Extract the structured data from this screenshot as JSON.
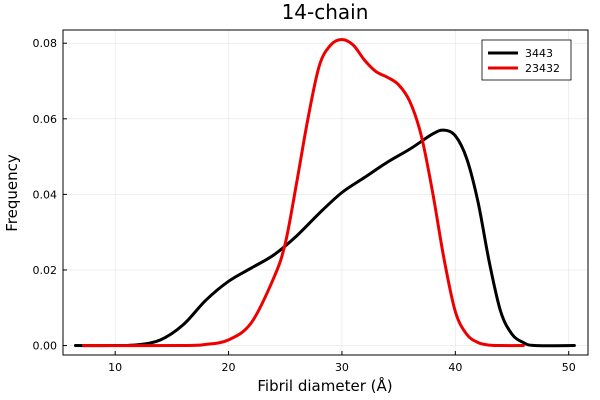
{
  "chart_data": {
    "type": "line",
    "title": "14-chain",
    "xlabel": "Fibril diameter (Å)",
    "ylabel": "Frequency",
    "xlim": [
      5.4,
      51.7
    ],
    "ylim": [
      -0.0025,
      0.0835
    ],
    "xticks": [
      10,
      20,
      30,
      40,
      50
    ],
    "xtick_labels": [
      "10",
      "20",
      "30",
      "40",
      "50"
    ],
    "yticks": [
      0.0,
      0.02,
      0.04,
      0.06,
      0.08
    ],
    "ytick_labels": [
      "0.00",
      "0.02",
      "0.04",
      "0.06",
      "0.08"
    ],
    "grid": true,
    "legend_position": "top-right",
    "series": [
      {
        "name": "3443",
        "color": "#000000",
        "points": [
          [
            6.5,
            0.0
          ],
          [
            10,
            0.0
          ],
          [
            12,
            0.0002
          ],
          [
            14,
            0.0015
          ],
          [
            16,
            0.0055
          ],
          [
            18,
            0.012
          ],
          [
            20,
            0.017
          ],
          [
            22,
            0.0205
          ],
          [
            24,
            0.024
          ],
          [
            26,
            0.029
          ],
          [
            28,
            0.035
          ],
          [
            30,
            0.0405
          ],
          [
            32,
            0.0445
          ],
          [
            34,
            0.0485
          ],
          [
            36,
            0.052
          ],
          [
            38,
            0.056
          ],
          [
            39,
            0.057
          ],
          [
            40,
            0.0555
          ],
          [
            41,
            0.0495
          ],
          [
            42,
            0.038
          ],
          [
            43,
            0.022
          ],
          [
            44,
            0.009
          ],
          [
            45,
            0.003
          ],
          [
            46,
            0.0008
          ],
          [
            47,
            0.0
          ],
          [
            50.5,
            0.0
          ]
        ]
      },
      {
        "name": "23432",
        "color": "#ee0000",
        "points": [
          [
            7.2,
            0.0
          ],
          [
            16,
            0.0
          ],
          [
            18,
            0.0003
          ],
          [
            20,
            0.0015
          ],
          [
            22,
            0.006
          ],
          [
            24,
            0.018
          ],
          [
            25,
            0.027
          ],
          [
            26,
            0.043
          ],
          [
            27,
            0.06
          ],
          [
            28,
            0.074
          ],
          [
            29,
            0.0795
          ],
          [
            30,
            0.081
          ],
          [
            31,
            0.0795
          ],
          [
            32,
            0.0755
          ],
          [
            33,
            0.0725
          ],
          [
            34,
            0.071
          ],
          [
            35,
            0.069
          ],
          [
            36,
            0.0645
          ],
          [
            37,
            0.0555
          ],
          [
            38,
            0.0405
          ],
          [
            39,
            0.023
          ],
          [
            40,
            0.009
          ],
          [
            41,
            0.003
          ],
          [
            42,
            0.0008
          ],
          [
            43,
            0.0001
          ],
          [
            44,
            0.0
          ],
          [
            46,
            0.0
          ]
        ]
      }
    ]
  }
}
